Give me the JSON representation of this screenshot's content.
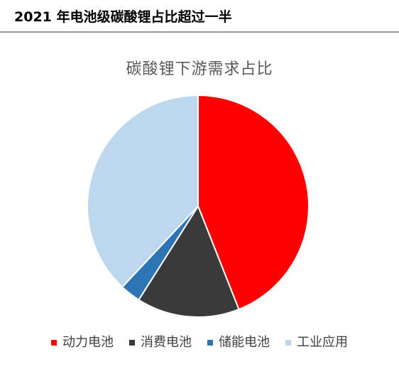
{
  "header": {
    "title": "2021 年电池级碳酸锂占比超过一半"
  },
  "chart_data": {
    "type": "pie",
    "title": "碳酸锂下游需求占比",
    "categories": [
      "动力电池",
      "消费电池",
      "储能电池",
      "工业应用"
    ],
    "values": [
      44,
      15,
      3,
      38
    ],
    "unit": "%",
    "colors": [
      "#ff0000",
      "#3a3a3a",
      "#2e75b6",
      "#bdd7ee"
    ],
    "start_angle_deg": 0,
    "direction": "clockwise",
    "legend_position": "bottom",
    "data_labels": false
  }
}
